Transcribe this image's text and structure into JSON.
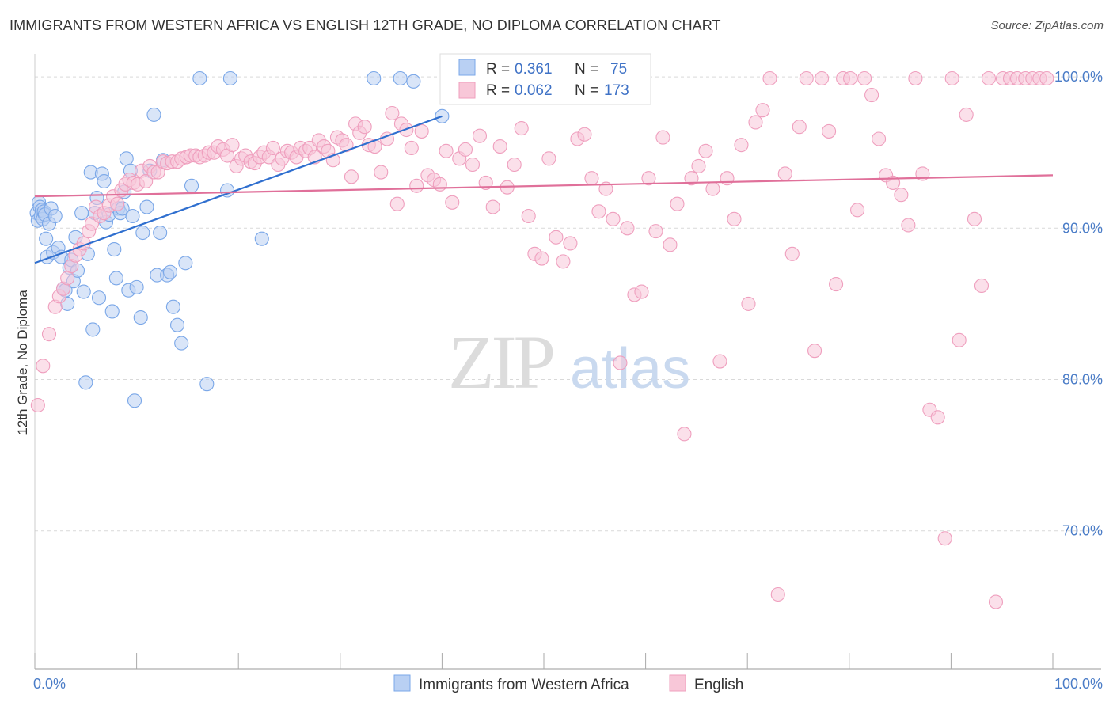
{
  "title": "IMMIGRANTS FROM WESTERN AFRICA VS ENGLISH 12TH GRADE, NO DIPLOMA CORRELATION CHART",
  "source": "Source: ZipAtlas.com",
  "watermark": {
    "zip": "ZIP",
    "atlas": "atlas"
  },
  "chart_data": {
    "type": "scatter",
    "title": "IMMIGRANTS FROM WESTERN AFRICA VS ENGLISH 12TH GRADE, NO DIPLOMA CORRELATION CHART",
    "xlabel": "",
    "ylabel": "12th Grade, No Diploma",
    "xlim": [
      0,
      100
    ],
    "ylim": [
      60.5,
      102
    ],
    "x_tick_labels": [
      {
        "value": 0,
        "label": "0.0%"
      },
      {
        "value": 100,
        "label": "100.0%"
      }
    ],
    "y_tick_labels": [
      {
        "value": 100,
        "label": "100.0%"
      },
      {
        "value": 90,
        "label": "90.0%"
      },
      {
        "value": 80,
        "label": "80.0%"
      },
      {
        "value": 70,
        "label": "70.0%"
      }
    ],
    "grid": "horizontal dashed",
    "legend_position": "bottom-center",
    "stats_position": "top-center",
    "series": [
      {
        "name": "Immigrants from Western Africa",
        "color": "#7aa7e8",
        "fill": "#b9d0f3",
        "line_color": "#2f6fcf",
        "R": "0.361",
        "N": "75",
        "trend": {
          "x": [
            0,
            40
          ],
          "y": [
            87.7,
            97.4
          ]
        },
        "points": [
          [
            0.2,
            91.0
          ],
          [
            0.3,
            90.5
          ],
          [
            0.4,
            91.7
          ],
          [
            0.5,
            91.4
          ],
          [
            0.6,
            90.8
          ],
          [
            0.7,
            91.2
          ],
          [
            0.8,
            90.6
          ],
          [
            0.9,
            91.1
          ],
          [
            1.0,
            90.9
          ],
          [
            1.1,
            89.3
          ],
          [
            1.2,
            88.1
          ],
          [
            1.4,
            90.3
          ],
          [
            1.6,
            91.3
          ],
          [
            1.8,
            88.4
          ],
          [
            2.0,
            90.8
          ],
          [
            2.3,
            88.7
          ],
          [
            2.6,
            88.1
          ],
          [
            2.8,
            86.0
          ],
          [
            3.0,
            85.9
          ],
          [
            3.2,
            85.0
          ],
          [
            3.4,
            87.4
          ],
          [
            3.6,
            87.9
          ],
          [
            3.8,
            86.5
          ],
          [
            4.0,
            89.4
          ],
          [
            4.2,
            87.2
          ],
          [
            4.6,
            91.0
          ],
          [
            4.8,
            85.8
          ],
          [
            5.0,
            79.8
          ],
          [
            5.2,
            88.3
          ],
          [
            5.5,
            93.7
          ],
          [
            5.7,
            83.3
          ],
          [
            5.9,
            91.0
          ],
          [
            6.1,
            92.0
          ],
          [
            6.3,
            85.4
          ],
          [
            6.6,
            93.6
          ],
          [
            6.8,
            93.1
          ],
          [
            7.0,
            90.4
          ],
          [
            7.3,
            90.9
          ],
          [
            7.6,
            84.5
          ],
          [
            7.8,
            88.6
          ],
          [
            8.0,
            86.7
          ],
          [
            8.2,
            91.3
          ],
          [
            8.4,
            91.0
          ],
          [
            8.6,
            91.3
          ],
          [
            8.8,
            92.4
          ],
          [
            9.0,
            94.6
          ],
          [
            9.2,
            85.9
          ],
          [
            9.4,
            93.8
          ],
          [
            9.6,
            90.8
          ],
          [
            9.8,
            78.6
          ],
          [
            10.0,
            86.1
          ],
          [
            10.4,
            84.1
          ],
          [
            10.6,
            89.7
          ],
          [
            11.0,
            91.4
          ],
          [
            11.3,
            93.8
          ],
          [
            11.7,
            97.5
          ],
          [
            12.0,
            86.9
          ],
          [
            12.3,
            89.7
          ],
          [
            12.6,
            94.5
          ],
          [
            13.0,
            86.9
          ],
          [
            13.3,
            87.1
          ],
          [
            13.6,
            84.8
          ],
          [
            14.0,
            83.6
          ],
          [
            14.4,
            82.4
          ],
          [
            14.8,
            87.7
          ],
          [
            15.4,
            92.8
          ],
          [
            16.2,
            99.9
          ],
          [
            16.9,
            79.7
          ],
          [
            18.9,
            92.5
          ],
          [
            19.2,
            99.9
          ],
          [
            22.3,
            89.3
          ],
          [
            33.3,
            99.9
          ],
          [
            35.9,
            99.9
          ],
          [
            37.2,
            99.7
          ],
          [
            40.0,
            97.4
          ]
        ]
      },
      {
        "name": "English",
        "color": "#ef9fbe",
        "fill": "#f8c7d8",
        "line_color": "#e0709a",
        "R": "0.062",
        "N": "173",
        "trend": {
          "x": [
            0,
            100
          ],
          "y": [
            92.1,
            93.5
          ]
        },
        "points": [
          [
            0.3,
            78.3
          ],
          [
            0.8,
            80.9
          ],
          [
            1.4,
            83.0
          ],
          [
            2.0,
            84.8
          ],
          [
            2.4,
            85.5
          ],
          [
            2.8,
            86.0
          ],
          [
            3.2,
            86.7
          ],
          [
            3.6,
            87.5
          ],
          [
            4.0,
            88.2
          ],
          [
            4.4,
            88.6
          ],
          [
            4.8,
            89.0
          ],
          [
            5.3,
            89.8
          ],
          [
            5.6,
            90.3
          ],
          [
            6.0,
            91.4
          ],
          [
            6.4,
            90.8
          ],
          [
            6.8,
            91.0
          ],
          [
            7.3,
            91.5
          ],
          [
            7.7,
            92.1
          ],
          [
            8.1,
            91.6
          ],
          [
            8.5,
            92.5
          ],
          [
            8.9,
            92.9
          ],
          [
            9.3,
            93.2
          ],
          [
            9.7,
            93.0
          ],
          [
            10.1,
            92.9
          ],
          [
            10.5,
            93.8
          ],
          [
            10.9,
            93.1
          ],
          [
            11.3,
            94.1
          ],
          [
            11.7,
            93.7
          ],
          [
            12.1,
            93.7
          ],
          [
            12.6,
            94.4
          ],
          [
            13.0,
            94.3
          ],
          [
            13.5,
            94.4
          ],
          [
            14.0,
            94.4
          ],
          [
            14.4,
            94.6
          ],
          [
            14.9,
            94.7
          ],
          [
            15.3,
            94.8
          ],
          [
            15.8,
            94.8
          ],
          [
            16.2,
            94.7
          ],
          [
            16.7,
            94.8
          ],
          [
            17.1,
            95.0
          ],
          [
            17.6,
            95.0
          ],
          [
            18.0,
            95.4
          ],
          [
            18.5,
            95.2
          ],
          [
            18.9,
            94.8
          ],
          [
            19.4,
            95.5
          ],
          [
            19.8,
            94.1
          ],
          [
            20.3,
            94.6
          ],
          [
            20.7,
            94.8
          ],
          [
            21.2,
            94.4
          ],
          [
            21.6,
            94.3
          ],
          [
            22.1,
            94.7
          ],
          [
            22.5,
            95.0
          ],
          [
            23.0,
            94.7
          ],
          [
            23.4,
            95.3
          ],
          [
            23.9,
            94.2
          ],
          [
            24.3,
            94.6
          ],
          [
            24.8,
            95.1
          ],
          [
            25.2,
            95.0
          ],
          [
            25.7,
            94.7
          ],
          [
            26.1,
            95.3
          ],
          [
            26.6,
            95.1
          ],
          [
            27.0,
            95.3
          ],
          [
            27.5,
            94.7
          ],
          [
            27.9,
            95.8
          ],
          [
            28.4,
            95.4
          ],
          [
            28.8,
            95.1
          ],
          [
            29.3,
            94.5
          ],
          [
            29.7,
            96.0
          ],
          [
            30.2,
            95.8
          ],
          [
            30.6,
            95.5
          ],
          [
            31.1,
            93.4
          ],
          [
            31.5,
            96.9
          ],
          [
            31.9,
            96.3
          ],
          [
            32.4,
            96.7
          ],
          [
            32.8,
            95.5
          ],
          [
            33.4,
            95.4
          ],
          [
            34.0,
            93.7
          ],
          [
            34.6,
            95.9
          ],
          [
            35.1,
            97.6
          ],
          [
            35.6,
            91.6
          ],
          [
            36.0,
            96.9
          ],
          [
            36.5,
            96.5
          ],
          [
            37.0,
            95.3
          ],
          [
            37.5,
            92.8
          ],
          [
            38.0,
            96.4
          ],
          [
            38.6,
            93.5
          ],
          [
            39.2,
            93.2
          ],
          [
            39.8,
            92.9
          ],
          [
            40.4,
            95.1
          ],
          [
            41.0,
            91.7
          ],
          [
            41.7,
            94.6
          ],
          [
            42.3,
            95.2
          ],
          [
            43.0,
            94.2
          ],
          [
            43.7,
            96.1
          ],
          [
            44.3,
            93.0
          ],
          [
            45.0,
            91.4
          ],
          [
            45.7,
            95.4
          ],
          [
            46.4,
            92.7
          ],
          [
            47.1,
            94.2
          ],
          [
            47.8,
            96.6
          ],
          [
            48.5,
            90.8
          ],
          [
            49.1,
            88.3
          ],
          [
            49.8,
            88.0
          ],
          [
            50.5,
            94.6
          ],
          [
            51.2,
            89.4
          ],
          [
            51.9,
            87.8
          ],
          [
            52.6,
            89.0
          ],
          [
            53.3,
            95.9
          ],
          [
            54.0,
            96.2
          ],
          [
            54.7,
            93.3
          ],
          [
            55.4,
            91.1
          ],
          [
            56.1,
            92.6
          ],
          [
            56.8,
            90.6
          ],
          [
            57.5,
            81.1
          ],
          [
            58.2,
            90.0
          ],
          [
            58.9,
            85.6
          ],
          [
            59.6,
            85.8
          ],
          [
            60.3,
            93.3
          ],
          [
            61.0,
            89.8
          ],
          [
            61.7,
            96.0
          ],
          [
            62.4,
            88.9
          ],
          [
            63.1,
            91.6
          ],
          [
            63.8,
            76.4
          ],
          [
            64.5,
            93.3
          ],
          [
            65.2,
            94.1
          ],
          [
            65.9,
            95.1
          ],
          [
            66.6,
            92.6
          ],
          [
            67.3,
            81.2
          ],
          [
            68.0,
            93.3
          ],
          [
            68.7,
            90.6
          ],
          [
            69.4,
            95.5
          ],
          [
            70.1,
            85.0
          ],
          [
            70.8,
            97.0
          ],
          [
            71.5,
            97.8
          ],
          [
            72.2,
            99.9
          ],
          [
            73.0,
            65.8
          ],
          [
            73.7,
            93.6
          ],
          [
            74.4,
            88.3
          ],
          [
            75.1,
            96.7
          ],
          [
            75.8,
            99.9
          ],
          [
            76.6,
            81.9
          ],
          [
            77.3,
            99.9
          ],
          [
            78.0,
            96.4
          ],
          [
            78.7,
            86.3
          ],
          [
            79.4,
            99.9
          ],
          [
            80.1,
            99.9
          ],
          [
            80.8,
            91.2
          ],
          [
            81.5,
            99.9
          ],
          [
            82.2,
            98.8
          ],
          [
            82.9,
            95.9
          ],
          [
            83.6,
            93.5
          ],
          [
            84.3,
            93.0
          ],
          [
            85.1,
            92.2
          ],
          [
            85.8,
            90.2
          ],
          [
            86.5,
            99.9
          ],
          [
            87.2,
            93.6
          ],
          [
            87.9,
            78.0
          ],
          [
            88.7,
            77.5
          ],
          [
            89.4,
            69.5
          ],
          [
            90.1,
            99.9
          ],
          [
            90.8,
            82.6
          ],
          [
            91.5,
            97.5
          ],
          [
            92.3,
            90.6
          ],
          [
            93.0,
            86.2
          ],
          [
            93.7,
            99.9
          ],
          [
            94.4,
            65.3
          ],
          [
            95.1,
            99.9
          ],
          [
            95.8,
            99.9
          ],
          [
            96.5,
            99.9
          ],
          [
            97.3,
            99.9
          ],
          [
            98.0,
            99.9
          ],
          [
            98.7,
            99.9
          ],
          [
            99.4,
            99.9
          ]
        ]
      }
    ]
  }
}
